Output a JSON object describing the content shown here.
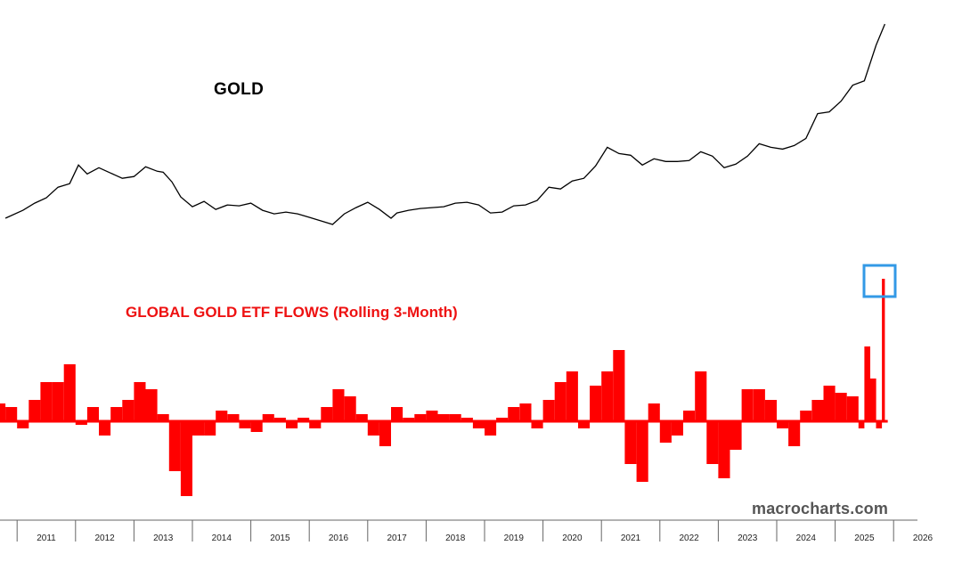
{
  "chart_data": [
    {
      "type": "line",
      "title": "GOLD",
      "series": [
        {
          "x": [
            2010.3,
            2010.6,
            2010.8,
            2011.0,
            2011.2,
            2011.4,
            2011.55,
            2011.7,
            2011.9,
            2012.1,
            2012.3,
            2012.5,
            2012.7,
            2012.9,
            2013.0,
            2013.15,
            2013.3,
            2013.5,
            2013.7,
            2013.9,
            2014.1,
            2014.3,
            2014.5,
            2014.7,
            2014.9,
            2015.1,
            2015.3,
            2015.5,
            2015.7,
            2015.9,
            2016.1,
            2016.3,
            2016.5,
            2016.7,
            2016.9,
            2017.0,
            2017.2,
            2017.4,
            2017.6,
            2017.8,
            2018.0,
            2018.2,
            2018.4,
            2018.6,
            2018.8,
            2019.0,
            2019.2,
            2019.4,
            2019.6,
            2019.8,
            2020.0,
            2020.2,
            2020.4,
            2020.6,
            2020.8,
            2021.0,
            2021.2,
            2021.4,
            2021.6,
            2021.8,
            2022.0,
            2022.2,
            2022.4,
            2022.6,
            2022.8,
            2023.0,
            2023.2,
            2023.4,
            2023.6,
            2023.8,
            2024.0,
            2024.2,
            2024.4,
            2024.6,
            2024.8,
            2025.0,
            2025.2,
            2025.35
          ],
          "values": [
            1150,
            1240,
            1320,
            1380,
            1500,
            1540,
            1750,
            1650,
            1720,
            1660,
            1600,
            1620,
            1730,
            1680,
            1670,
            1560,
            1390,
            1280,
            1340,
            1250,
            1300,
            1290,
            1320,
            1240,
            1200,
            1220,
            1200,
            1160,
            1120,
            1080,
            1200,
            1270,
            1330,
            1250,
            1150,
            1210,
            1240,
            1260,
            1270,
            1280,
            1320,
            1330,
            1300,
            1210,
            1220,
            1290,
            1300,
            1350,
            1500,
            1480,
            1570,
            1600,
            1740,
            1950,
            1880,
            1860,
            1750,
            1820,
            1790,
            1790,
            1800,
            1900,
            1850,
            1720,
            1760,
            1850,
            1990,
            1950,
            1930,
            1970,
            2050,
            2330,
            2350,
            2470,
            2650,
            2700,
            3100,
            3340
          ]
        }
      ]
    },
    {
      "type": "bar",
      "title": "GLOBAL GOLD ETF FLOWS (Rolling 3-Month)",
      "series": [
        {
          "x": [
            2010.3,
            2010.5,
            2010.7,
            2010.9,
            2011.1,
            2011.3,
            2011.5,
            2011.7,
            2011.9,
            2012.1,
            2012.3,
            2012.5,
            2012.7,
            2012.9,
            2013.1,
            2013.3,
            2013.5,
            2013.7,
            2013.9,
            2014.1,
            2014.3,
            2014.5,
            2014.7,
            2014.9,
            2015.1,
            2015.3,
            2015.5,
            2015.7,
            2015.9,
            2016.1,
            2016.3,
            2016.5,
            2016.7,
            2016.9,
            2017.1,
            2017.3,
            2017.5,
            2017.7,
            2017.9,
            2018.1,
            2018.3,
            2018.5,
            2018.7,
            2018.9,
            2019.1,
            2019.3,
            2019.5,
            2019.7,
            2019.9,
            2020.1,
            2020.3,
            2020.5,
            2020.7,
            2020.9,
            2021.1,
            2021.3,
            2021.5,
            2021.7,
            2021.9,
            2022.1,
            2022.3,
            2022.5,
            2022.7,
            2022.9,
            2023.1,
            2023.3,
            2023.5,
            2023.7,
            2023.9,
            2024.1,
            2024.3,
            2024.5,
            2024.7,
            2024.9,
            2025.0,
            2025.1,
            2025.2,
            2025.3,
            2025.35
          ],
          "values": [
            25,
            20,
            -10,
            30,
            55,
            55,
            80,
            -5,
            20,
            -20,
            20,
            30,
            55,
            45,
            10,
            -70,
            -105,
            -20,
            -20,
            15,
            10,
            -10,
            -15,
            10,
            5,
            -10,
            5,
            -10,
            20,
            45,
            35,
            10,
            -20,
            -35,
            20,
            5,
            10,
            15,
            10,
            10,
            5,
            -10,
            -20,
            5,
            20,
            25,
            -10,
            30,
            55,
            70,
            -10,
            50,
            70,
            100,
            -60,
            -85,
            25,
            -30,
            -20,
            15,
            70,
            -60,
            -80,
            -40,
            45,
            45,
            30,
            -10,
            -35,
            15,
            30,
            50,
            40,
            35,
            -10,
            105,
            60,
            -10,
            200
          ]
        }
      ]
    }
  ],
  "x_axis": {
    "ticks": [
      "2011",
      "2012",
      "2013",
      "2014",
      "2015",
      "2016",
      "2017",
      "2018",
      "2019",
      "2020",
      "2021",
      "2022",
      "2023",
      "2024",
      "2025",
      "2026"
    ]
  },
  "gold_label": "GOLD",
  "etf_label": "GLOBAL GOLD ETF FLOWS (Rolling 3-Month)",
  "watermark": "macrocharts.com",
  "colors": {
    "gold_line": "#000000",
    "etf_fill": "#ff0000",
    "highlight_box": "#3399e6",
    "axis": "#666666"
  }
}
